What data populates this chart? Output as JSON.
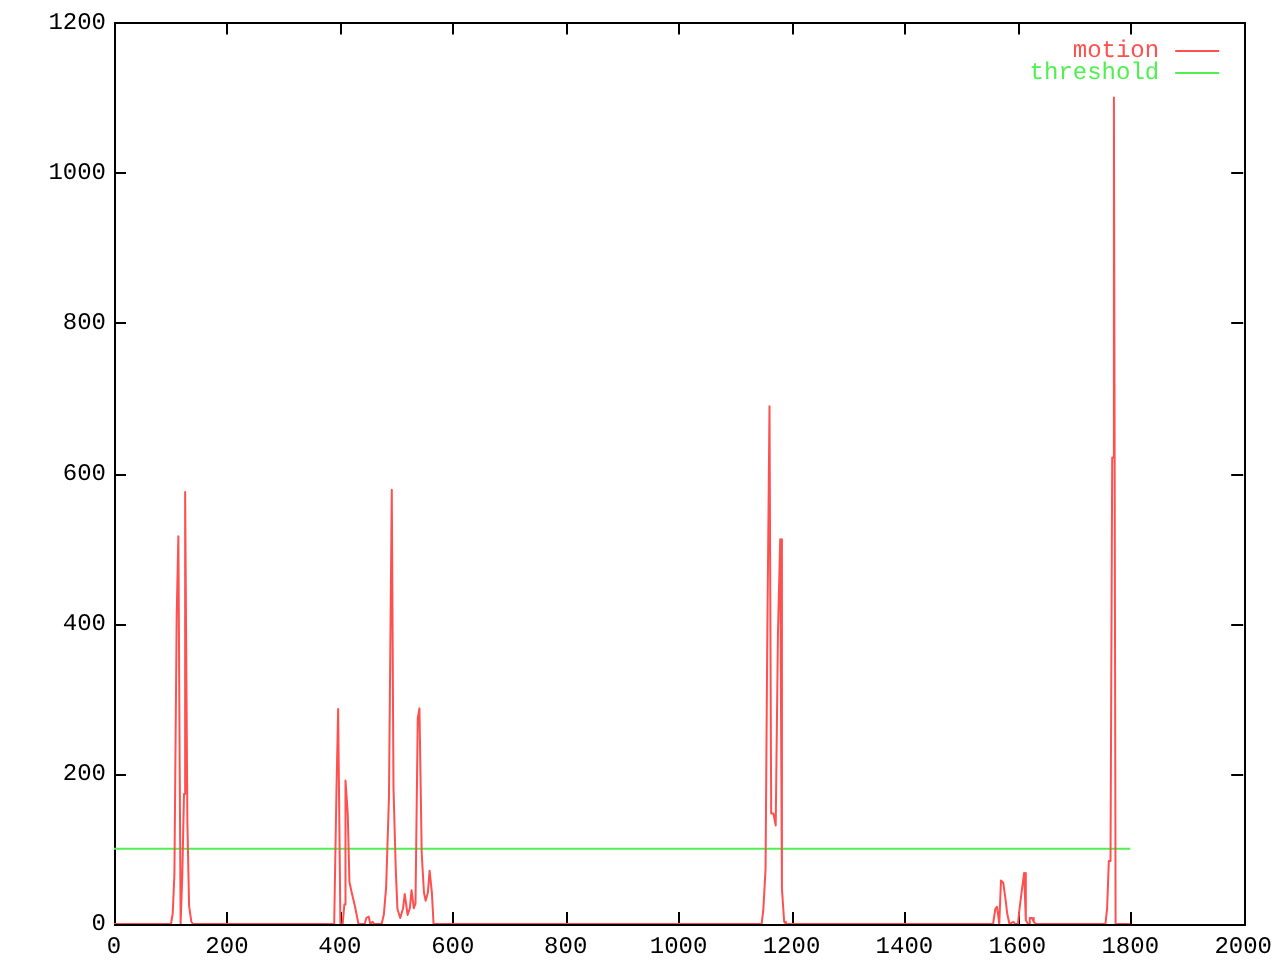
{
  "chart_data": {
    "type": "line",
    "xlim": [
      0,
      2000
    ],
    "xticks": [
      0,
      200,
      400,
      600,
      800,
      1000,
      1200,
      1400,
      1600,
      1800,
      2000
    ],
    "ylim": [
      0,
      1200
    ],
    "yticks": [
      0,
      200,
      400,
      600,
      800,
      1000,
      1200
    ],
    "grid": false,
    "legend": "top right",
    "marker": "none",
    "series": [
      {
        "name": "motion",
        "color": "#ff5050",
        "x": [
          0,
          101,
          104,
          107,
          111,
          114,
          118,
          121,
          124,
          126,
          130,
          133,
          137,
          140,
          390,
          394,
          397,
          401,
          405,
          408,
          410,
          414,
          417,
          421,
          427,
          433,
          444,
          447,
          451,
          454,
          458,
          461,
          474,
          478,
          482,
          487,
          492,
          495,
          499,
          502,
          507,
          512,
          515,
          520,
          524,
          527,
          531,
          534,
          538,
          541,
          545,
          549,
          552,
          556,
          559,
          563,
          566,
          1147,
          1150,
          1154,
          1157,
          1161,
          1164,
          1168,
          1172,
          1176,
          1180,
          1183,
          1187,
          1190,
          1557,
          1561,
          1564,
          1568,
          1571,
          1575,
          1579,
          1582,
          1586,
          1593,
          1596,
          1601,
          1604,
          1608,
          1612,
          1615,
          1619,
          1622,
          1626,
          1629,
          1633,
          1756,
          1759,
          1762,
          1765,
          1768,
          1771,
          1774,
          1800
        ],
        "values": [
          0,
          0,
          14,
          66,
          409,
          516,
          0,
          66,
          173,
          575,
          134,
          24,
          3,
          0,
          0,
          177,
          286,
          0,
          0,
          26,
          191,
          147,
          56,
          42,
          23,
          0,
          0,
          8,
          10,
          0,
          3,
          0,
          0,
          13,
          49,
          168,
          578,
          182,
          74,
          20,
          8,
          21,
          40,
          12,
          21,
          45,
          21,
          27,
          274,
          287,
          94,
          42,
          31,
          42,
          71,
          42,
          0,
          0,
          18,
          73,
          372,
          689,
          147,
          147,
          131,
          388,
          512,
          47,
          3,
          0,
          0,
          20,
          23,
          0,
          58,
          55,
          33,
          14,
          0,
          3,
          0,
          0,
          21,
          45,
          68,
          5,
          0,
          8,
          8,
          3,
          0,
          0,
          21,
          84,
          84,
          621,
          1100,
          0,
          0
        ]
      },
      {
        "name": "threshold",
        "color": "#50f050",
        "x": [
          0,
          1800
        ],
        "values": [
          100,
          100
        ]
      }
    ]
  }
}
